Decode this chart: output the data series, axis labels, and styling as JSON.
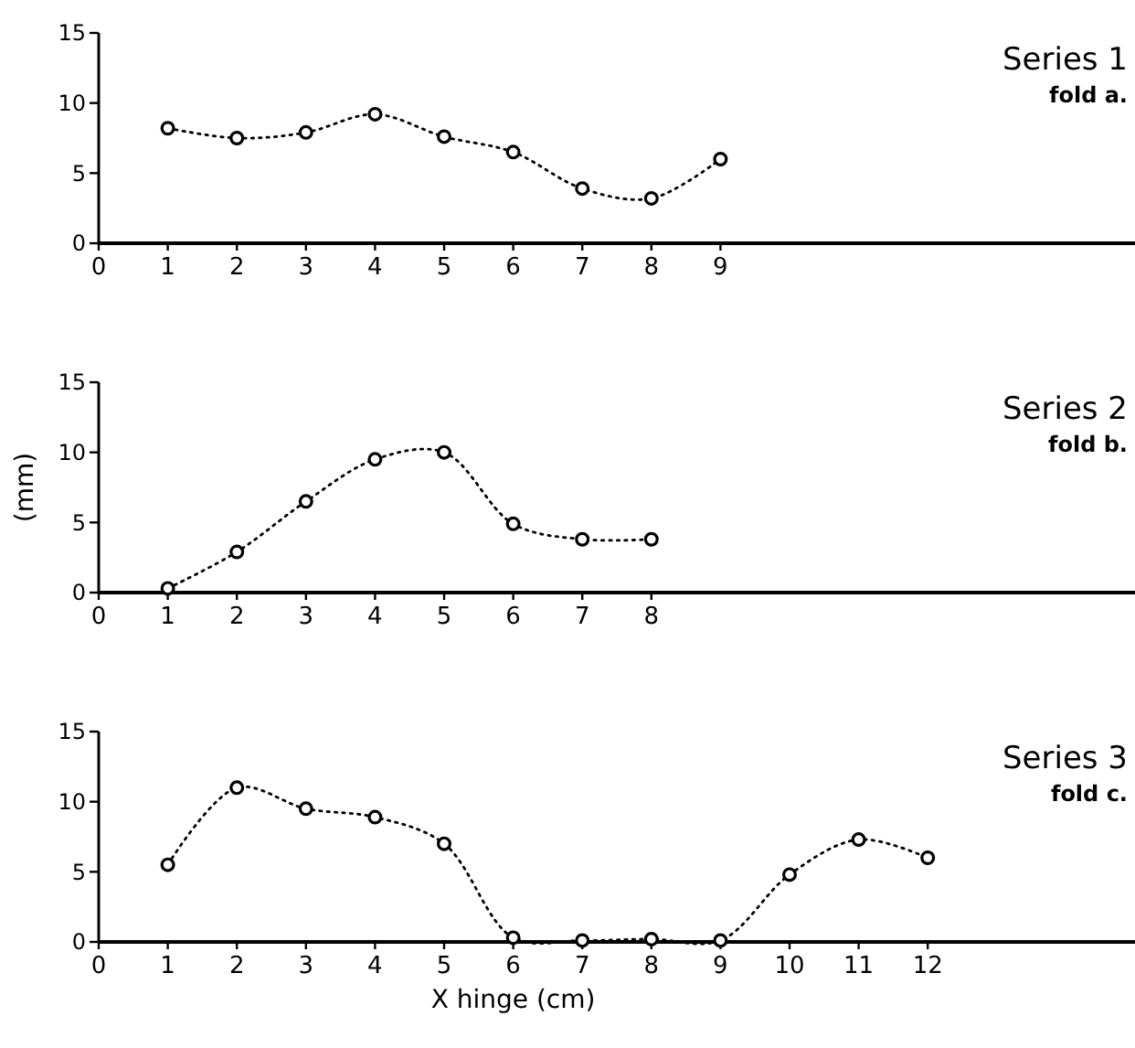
{
  "chart_data": [
    {
      "type": "line",
      "x": [
        1,
        2,
        3,
        4,
        5,
        6,
        7,
        8,
        9
      ],
      "series": [
        {
          "name": "Series 1",
          "color": "#000000",
          "values": [
            8.2,
            7.5,
            7.9,
            9.2,
            7.6,
            6.5,
            3.9,
            3.2,
            6.0
          ]
        }
      ],
      "annotations": [
        "fold a."
      ],
      "xlim": [
        0,
        15
      ],
      "xticks": [
        0,
        1,
        2,
        3,
        4,
        5,
        6,
        7,
        8,
        9
      ],
      "ylim": [
        0,
        15
      ],
      "yticks": [
        0,
        5,
        10,
        15
      ],
      "grid": false,
      "marker": "circle",
      "line_style": "dotted"
    },
    {
      "type": "line",
      "x": [
        1,
        2,
        3,
        4,
        5,
        6,
        7,
        8
      ],
      "series": [
        {
          "name": "Series 2",
          "color": "#000000",
          "values": [
            0.3,
            2.9,
            6.5,
            9.5,
            10.0,
            4.9,
            3.8,
            3.8
          ]
        }
      ],
      "annotations": [
        "fold b."
      ],
      "ylabel": "(mm)",
      "xlim": [
        0,
        15
      ],
      "xticks": [
        0,
        1,
        2,
        3,
        4,
        5,
        6,
        7,
        8
      ],
      "ylim": [
        0,
        15
      ],
      "yticks": [
        0,
        5,
        10,
        15
      ],
      "grid": false,
      "marker": "circle",
      "line_style": "dotted"
    },
    {
      "type": "line",
      "x": [
        1,
        2,
        3,
        4,
        5,
        6,
        7,
        8,
        9,
        10,
        11,
        12
      ],
      "series": [
        {
          "name": "Series 3",
          "color": "#000000",
          "values": [
            5.5,
            11.0,
            9.5,
            8.9,
            7.0,
            0.3,
            0.1,
            0.2,
            0.1,
            4.8,
            7.3,
            6.0
          ]
        }
      ],
      "annotations": [
        "fold c."
      ],
      "xlabel": "X hinge (cm)",
      "xlim": [
        0,
        15
      ],
      "xticks": [
        0,
        1,
        2,
        3,
        4,
        5,
        6,
        7,
        8,
        9,
        10,
        11,
        12
      ],
      "ylim": [
        0,
        15
      ],
      "yticks": [
        0,
        5,
        10,
        15
      ],
      "grid": false,
      "marker": "circle",
      "line_style": "dotted"
    }
  ]
}
